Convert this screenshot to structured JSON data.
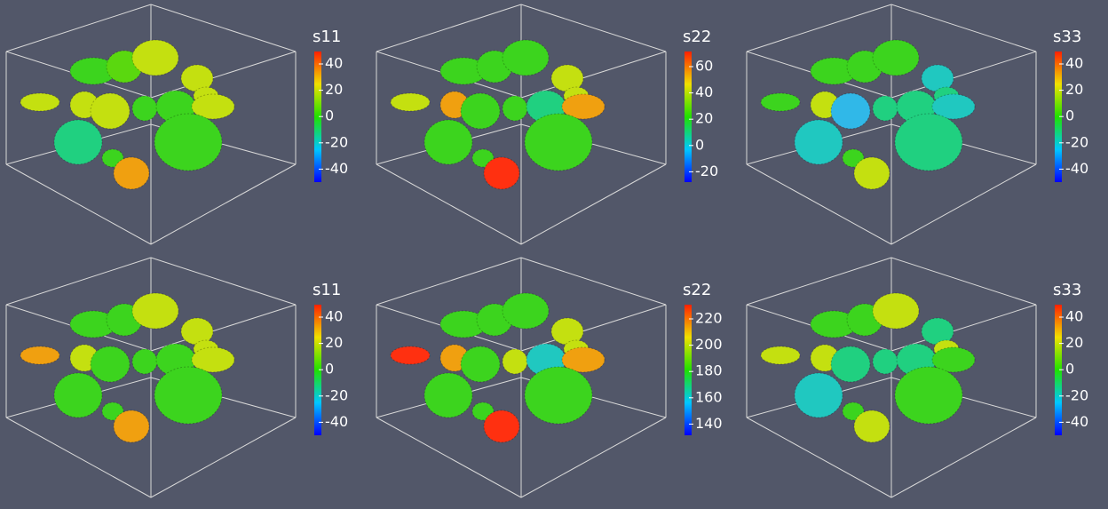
{
  "panels": [
    {
      "title": "s11",
      "ticks": [
        40,
        20,
        0,
        -20,
        -40
      ]
    },
    {
      "title": "s22",
      "ticks": [
        60,
        40,
        20,
        0,
        -20
      ]
    },
    {
      "title": "s33",
      "ticks": [
        40,
        20,
        0,
        -20,
        -40
      ]
    },
    {
      "title": "s11",
      "ticks": [
        40,
        20,
        0,
        -20,
        -40
      ]
    },
    {
      "title": "s22",
      "ticks": [
        220,
        200,
        180,
        160,
        140
      ]
    },
    {
      "title": "s33",
      "ticks": [
        40,
        20,
        0,
        -20,
        -40
      ]
    }
  ]
}
